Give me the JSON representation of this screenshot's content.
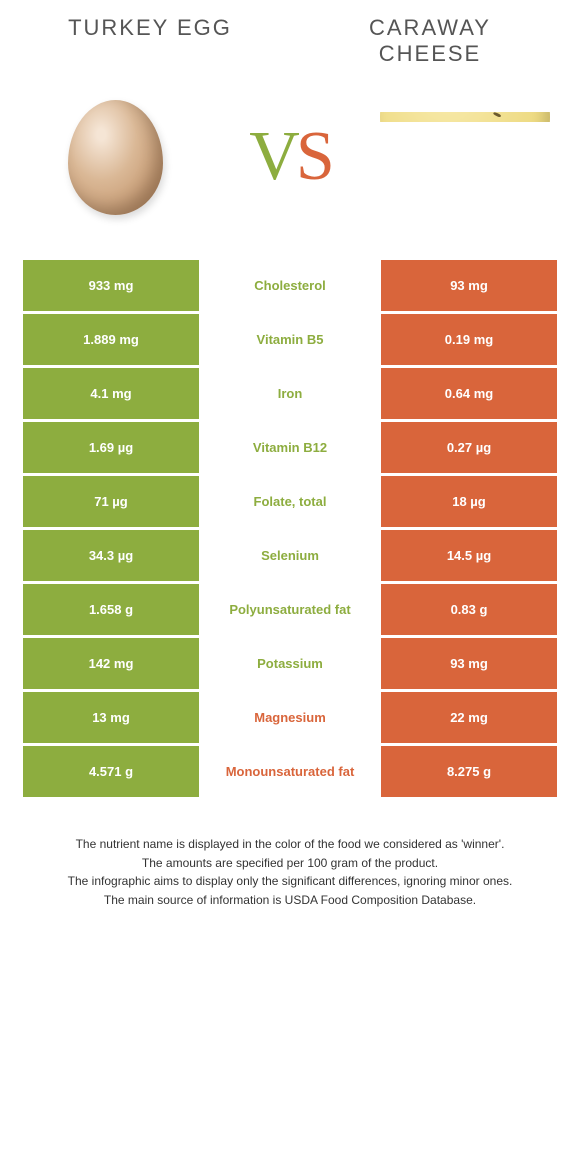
{
  "header": {
    "left_title": "TURKEY EGG",
    "right_title": "CARAWAY CHEESE"
  },
  "vs": {
    "v": "V",
    "s": "S"
  },
  "colors": {
    "green": "#8dad3f",
    "orange": "#d9653b",
    "white": "#ffffff",
    "text": "#333333"
  },
  "table": {
    "rows": [
      {
        "left": "933 mg",
        "mid": "Cholesterol",
        "right": "93 mg",
        "winner": "green"
      },
      {
        "left": "1.889 mg",
        "mid": "Vitamin B5",
        "right": "0.19 mg",
        "winner": "green"
      },
      {
        "left": "4.1 mg",
        "mid": "Iron",
        "right": "0.64 mg",
        "winner": "green"
      },
      {
        "left": "1.69 µg",
        "mid": "Vitamin B12",
        "right": "0.27 µg",
        "winner": "green"
      },
      {
        "left": "71 µg",
        "mid": "Folate, total",
        "right": "18 µg",
        "winner": "green"
      },
      {
        "left": "34.3 µg",
        "mid": "Selenium",
        "right": "14.5 µg",
        "winner": "green"
      },
      {
        "left": "1.658 g",
        "mid": "Polyunsaturated fat",
        "right": "0.83 g",
        "winner": "green"
      },
      {
        "left": "142 mg",
        "mid": "Potassium",
        "right": "93 mg",
        "winner": "green"
      },
      {
        "left": "13 mg",
        "mid": "Magnesium",
        "right": "22 mg",
        "winner": "orange"
      },
      {
        "left": "4.571 g",
        "mid": "Monounsaturated fat",
        "right": "8.275 g",
        "winner": "orange"
      }
    ]
  },
  "notes": {
    "line1": "The nutrient name is displayed in the color of the food we considered as 'winner'.",
    "line2": "The amounts are specified per 100 gram of the product.",
    "line3": "The infographic aims to display only the significant differences, ignoring minor ones.",
    "line4": "The main source of information is USDA Food Composition Database."
  }
}
